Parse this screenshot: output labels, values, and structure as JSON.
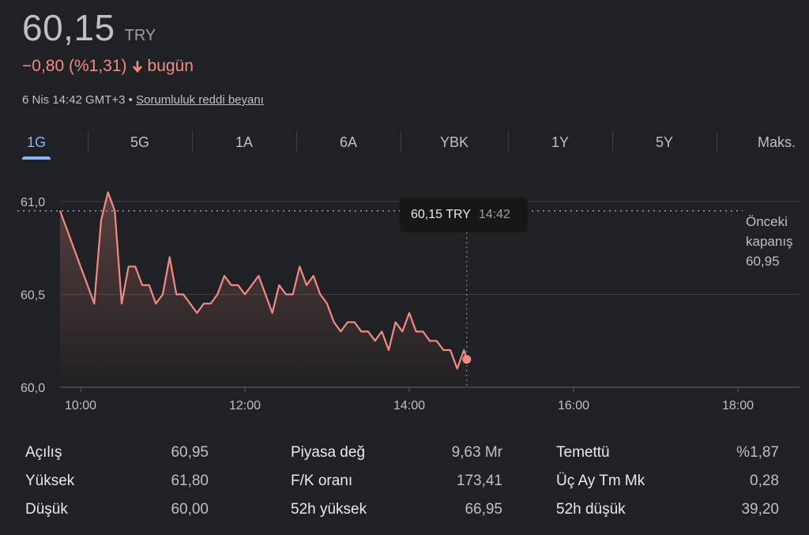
{
  "quote": {
    "price": "60,15",
    "currency": "TRY",
    "change": "−0,80 (%1,31)",
    "change_period": "bugün",
    "timestamp": "6 Nis 14:42 GMT+3",
    "separator": "•",
    "disclaimer": "Sorumluluk reddi beyanı"
  },
  "tabs": [
    "1G",
    "5G",
    "1A",
    "6A",
    "YBK",
    "1Y",
    "5Y",
    "Maks."
  ],
  "active_tab": "1G",
  "tooltip": {
    "price": "60,15 TRY",
    "time": "14:42"
  },
  "previous_close": {
    "label1": "Önceki",
    "label2": "kapanış",
    "value": "60,95"
  },
  "colors": {
    "line": "#f28b82",
    "accent": "#8ab4f8",
    "background": "#202124"
  },
  "chart_data": {
    "type": "line",
    "y_ticks": [
      "61,0",
      "60,5",
      "60,0"
    ],
    "x_ticks": [
      "10:00",
      "12:00",
      "14:00",
      "16:00",
      "18:00"
    ],
    "ylim": [
      60.0,
      61.0
    ],
    "xlim_hours": [
      9.75,
      18.75
    ],
    "previous_close": 60.95,
    "series": [
      {
        "x": [
          "09:45",
          "09:50",
          "09:55",
          "10:00",
          "10:05",
          "10:10",
          "10:15",
          "10:20",
          "10:25",
          "10:30",
          "10:35",
          "10:40",
          "10:45",
          "10:50",
          "10:55",
          "11:00",
          "11:05",
          "11:10",
          "11:15",
          "11:20",
          "11:25",
          "11:30",
          "11:35",
          "11:40",
          "11:45",
          "11:50",
          "11:55",
          "12:00",
          "12:05",
          "12:10",
          "12:15",
          "12:20",
          "12:25",
          "12:30",
          "12:35",
          "12:40",
          "12:45",
          "12:50",
          "12:55",
          "13:00",
          "13:05",
          "13:10",
          "13:15",
          "13:20",
          "13:25",
          "13:30",
          "13:35",
          "13:40",
          "13:45",
          "13:50",
          "13:55",
          "14:00",
          "14:05",
          "14:10",
          "14:15",
          "14:20",
          "14:25",
          "14:30",
          "14:35",
          "14:40",
          "14:42"
        ],
        "values": [
          60.95,
          60.85,
          60.75,
          60.65,
          60.55,
          60.45,
          60.9,
          61.05,
          60.95,
          60.45,
          60.65,
          60.65,
          60.55,
          60.55,
          60.45,
          60.5,
          60.7,
          60.5,
          60.5,
          60.45,
          60.4,
          60.45,
          60.45,
          60.5,
          60.6,
          60.55,
          60.55,
          60.5,
          60.55,
          60.6,
          60.5,
          60.4,
          60.55,
          60.5,
          60.5,
          60.65,
          60.55,
          60.6,
          60.5,
          60.45,
          60.35,
          60.3,
          60.35,
          60.35,
          60.3,
          60.3,
          60.25,
          60.3,
          60.2,
          60.35,
          60.3,
          60.4,
          60.3,
          60.3,
          60.25,
          60.25,
          60.2,
          60.2,
          60.1,
          60.2,
          60.15
        ]
      }
    ]
  },
  "stats": [
    {
      "label": "Açılış",
      "value": "60,95"
    },
    {
      "label": "Yüksek",
      "value": "61,80"
    },
    {
      "label": "Düşük",
      "value": "60,00"
    },
    {
      "label": "Piyasa değ",
      "value": "9,63 Mr"
    },
    {
      "label": "F/K oranı",
      "value": "173,41"
    },
    {
      "label": "52h yüksek",
      "value": "66,95"
    },
    {
      "label": "Temettü",
      "value": "%1,87"
    },
    {
      "label": "Üç Ay Tm Mk",
      "value": "0,28"
    },
    {
      "label": "52h düşük",
      "value": "39,20"
    }
  ]
}
